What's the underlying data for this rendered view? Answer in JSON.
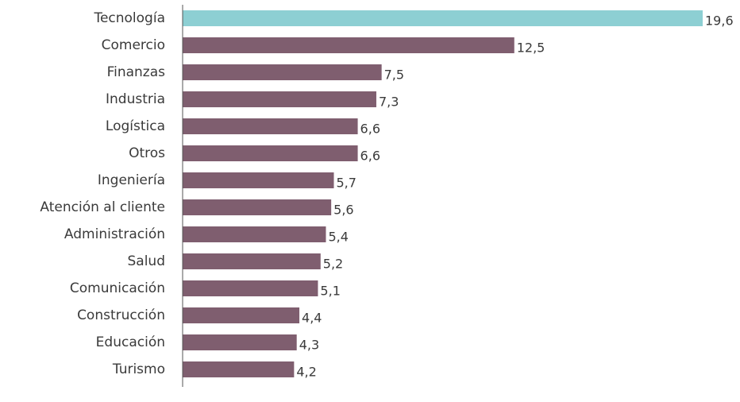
{
  "chart_data": {
    "type": "bar",
    "orientation": "horizontal",
    "categories": [
      "Tecnología",
      "Comercio",
      "Finanzas",
      "Industria",
      "Logística",
      "Otros",
      "Ingeniería",
      "Atención al cliente",
      "Administración",
      "Salud",
      "Comunicación",
      "Construcción",
      "Educación",
      "Turismo"
    ],
    "values": [
      19.6,
      12.5,
      7.5,
      7.3,
      6.6,
      6.6,
      5.7,
      5.6,
      5.4,
      5.2,
      5.1,
      4.4,
      4.3,
      4.2
    ],
    "value_labels": [
      "19,6",
      "12,5",
      "7,5",
      "7,3",
      "6,6",
      "6,6",
      "5,7",
      "5,6",
      "5,4",
      "5,2",
      "5,1",
      "4,4",
      "4,3",
      "4,2"
    ],
    "xlim": [
      0,
      19.6
    ],
    "grid": false,
    "legend": "none",
    "highlight_index": 0,
    "colors": {
      "highlight": "#8DCFD3",
      "default": "#7F5E6F",
      "axis": "#555555",
      "text": "#3a3a3a"
    }
  }
}
